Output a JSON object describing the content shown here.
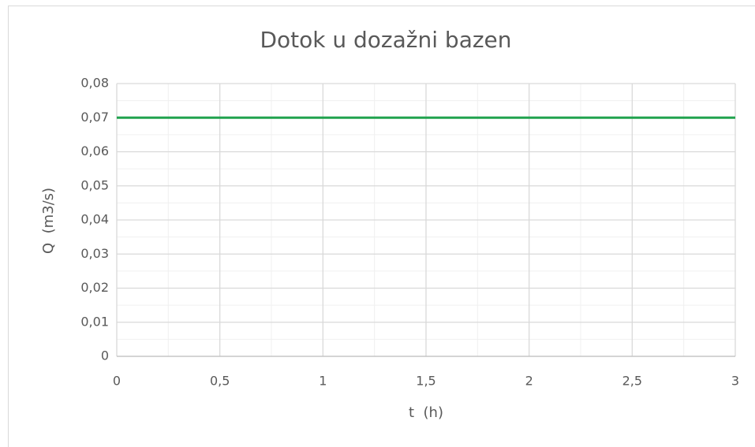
{
  "chart_data": {
    "type": "line",
    "title": "Dotok u dozažni bazen",
    "x_label": "t  (h)",
    "y_label": "Q  (m3/s)",
    "x": [
      0,
      3
    ],
    "series": [
      {
        "name": "Q",
        "color": "#21a34f",
        "values": [
          0.07,
          0.07
        ]
      }
    ],
    "xlim": [
      0,
      3
    ],
    "xticks": [
      0,
      {
        "value": 0.5,
        "label": "0,5"
      },
      1,
      {
        "value": 1.5,
        "label": "1,5"
      },
      2,
      {
        "value": 2.5,
        "label": "2,5"
      },
      3
    ],
    "ylim": [
      0,
      0.08
    ],
    "yticks": [
      0,
      {
        "value": 0.01,
        "label": "0,01"
      },
      {
        "value": 0.02,
        "label": "0,02"
      },
      {
        "value": 0.03,
        "label": "0,03"
      },
      {
        "value": 0.04,
        "label": "0,04"
      },
      {
        "value": 0.05,
        "label": "0,05"
      },
      {
        "value": 0.06,
        "label": "0,06"
      },
      {
        "value": 0.07,
        "label": "0,07"
      },
      {
        "value": 0.08,
        "label": "0,08"
      }
    ],
    "grid": true,
    "minor_grid": true,
    "legend": false
  }
}
